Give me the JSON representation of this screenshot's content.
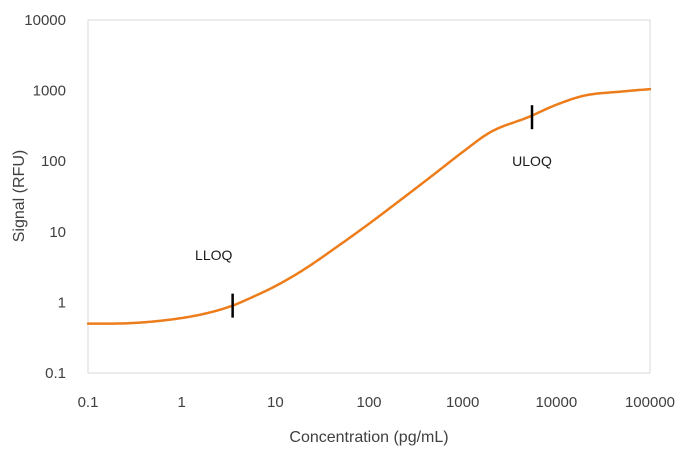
{
  "chart_data": {
    "type": "line",
    "title": "",
    "xlabel": "Concentration (pg/mL)",
    "ylabel": "Signal (RFU)",
    "xscale": "log",
    "yscale": "log",
    "xlim": [
      0.1,
      100000
    ],
    "ylim": [
      0.1,
      10000
    ],
    "x_ticks": [
      0.1,
      1,
      10,
      100,
      1000,
      10000,
      100000
    ],
    "x_tick_labels": [
      "0.1",
      "1",
      "10",
      "100",
      "1000",
      "10000",
      "100000"
    ],
    "y_ticks": [
      0.1,
      1,
      10,
      100,
      1000,
      10000
    ],
    "y_tick_labels": [
      "0.1",
      "1",
      "10",
      "100",
      "1000",
      "10000"
    ],
    "grid": false,
    "legend": "none",
    "series": [
      {
        "color": "#ED7D1A",
        "x": [
          0.1,
          0.3,
          1,
          2,
          3.5,
          5,
          10,
          20,
          50,
          100,
          200,
          500,
          1000,
          2000,
          5000,
          10000,
          20000,
          50000,
          100000
        ],
        "y": [
          0.5,
          0.51,
          0.6,
          0.72,
          0.9,
          1.1,
          1.7,
          2.9,
          6.7,
          13,
          26,
          66,
          135,
          260,
          420,
          630,
          850,
          970,
          1050
        ]
      }
    ],
    "annotations": [
      {
        "text": "LLOQ",
        "marker_x": 3.5,
        "marker_y": 0.9,
        "label_x": 2.2,
        "label_y": 4.7
      },
      {
        "text": "ULOQ",
        "marker_x": 5500,
        "marker_y": 420,
        "label_x": 5500,
        "label_y": 100
      }
    ],
    "colors": {
      "axis": "#d9d9d9",
      "text": "#404040",
      "marker": "#000000"
    }
  }
}
